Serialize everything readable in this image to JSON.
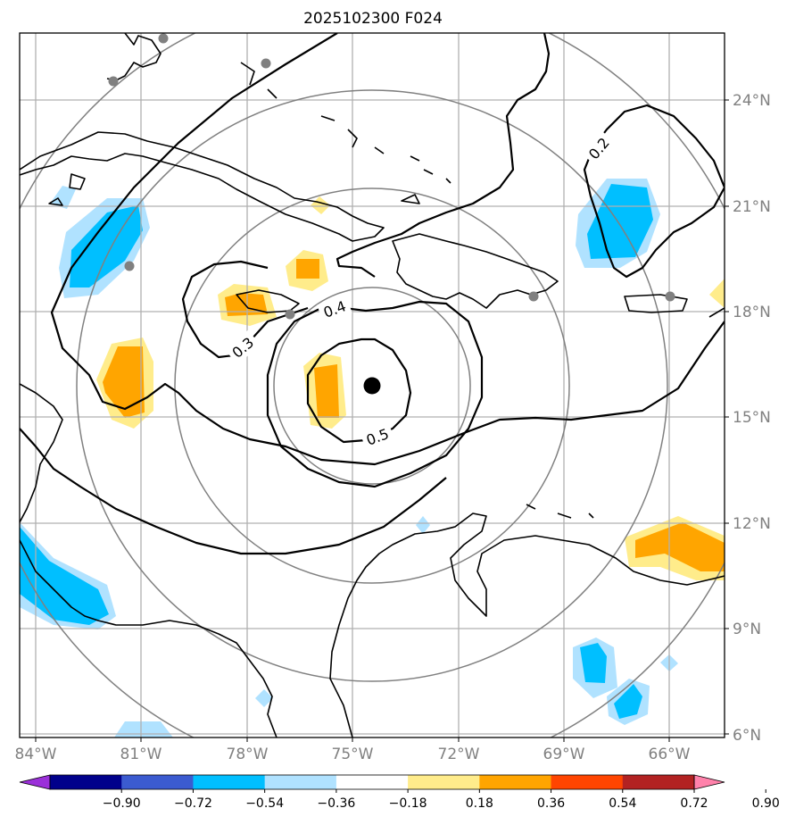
{
  "title": "2025102300 F024",
  "map": {
    "type": "contour_map",
    "lon_range": [
      -84.1,
      -64.9
    ],
    "lat_range": [
      5.9,
      25.8
    ],
    "grid": true,
    "x_ticks": [
      "84°W",
      "81°W",
      "78°W",
      "75°W",
      "72°W",
      "69°W",
      "66°W"
    ],
    "y_ticks": [
      "24°N",
      "21°N",
      "18°N",
      "15°N",
      "12°N",
      "9°N",
      "6°N"
    ],
    "center_marker": {
      "lon": -74.4,
      "lat": 15.9
    },
    "station_markers": [
      {
        "lon": -80.4,
        "lat": 25.8
      },
      {
        "lon": -81.8,
        "lat": 24.6
      },
      {
        "lon": -77.3,
        "lat": 25.0
      },
      {
        "lon": -80.6,
        "lat": 19.3
      },
      {
        "lon": -76.8,
        "lat": 17.9
      },
      {
        "lon": -69.9,
        "lat": 18.5
      },
      {
        "lon": -66.0,
        "lat": 18.4
      }
    ],
    "contour_labels": [
      "0.2",
      "0.3",
      "0.4",
      "0.5"
    ],
    "colors": {
      "coast": "#000000",
      "grid": "#b0b0b0",
      "range_rings": "#808080"
    }
  },
  "colorbar": {
    "levels": [
      "−0.90",
      "−0.72",
      "−0.54",
      "−0.36",
      "−0.18",
      "0.18",
      "0.36",
      "0.54",
      "0.72",
      "0.90"
    ],
    "colors": [
      "#9b30d9",
      "#00008b",
      "#3b5bd0",
      "#00bfff",
      "#b0e2ff",
      "#ffffff",
      "#ffec8b",
      "#ffa500",
      "#ff4500",
      "#b22222",
      "#ff82ab"
    ]
  }
}
